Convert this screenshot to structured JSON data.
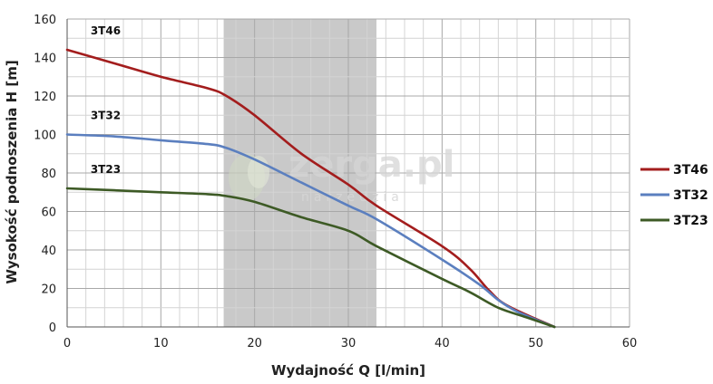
{
  "chart_data": {
    "type": "line",
    "title": "",
    "xlabel": "Wydajność Q [l/min]",
    "ylabel": "Wysokość podnoszenia H [m]",
    "xlim": [
      0,
      60
    ],
    "ylim": [
      0,
      160
    ],
    "x_ticks": [
      "0",
      "10",
      "20",
      "30",
      "40",
      "50",
      "60"
    ],
    "y_ticks": [
      "0",
      "20",
      "40",
      "60",
      "80",
      "100",
      "120",
      "140",
      "160"
    ],
    "grid": true,
    "highlight_range_x": [
      16.7,
      33
    ],
    "highlight_color": "#c9c9c9",
    "legend_position": "right",
    "watermark": {
      "main": "zerga.pl",
      "sub": "narzedzia"
    },
    "series": [
      {
        "name": "3T46",
        "color": "#a31d1d",
        "x": [
          0,
          5,
          10,
          15,
          17,
          20,
          25,
          30,
          33,
          40,
          43,
          45,
          47,
          52
        ],
        "y": [
          144,
          137,
          130,
          124,
          120,
          110,
          90,
          74,
          63,
          42,
          30,
          19,
          11,
          0
        ]
      },
      {
        "name": "3T32",
        "color": "#5b7fbf",
        "x": [
          0,
          5,
          10,
          15,
          17,
          20,
          25,
          30,
          33,
          40,
          44,
          46,
          48,
          52
        ],
        "y": [
          100,
          99,
          97,
          95,
          93,
          87,
          75,
          63,
          56,
          35,
          22,
          14,
          8,
          0
        ]
      },
      {
        "name": "3T23",
        "color": "#3d5a25",
        "x": [
          0,
          5,
          10,
          15,
          17,
          20,
          25,
          30,
          33,
          40,
          43,
          46,
          49,
          52
        ],
        "y": [
          72,
          71,
          70,
          69,
          68,
          65,
          57,
          50,
          42,
          25,
          18,
          10,
          5,
          0
        ]
      }
    ]
  }
}
